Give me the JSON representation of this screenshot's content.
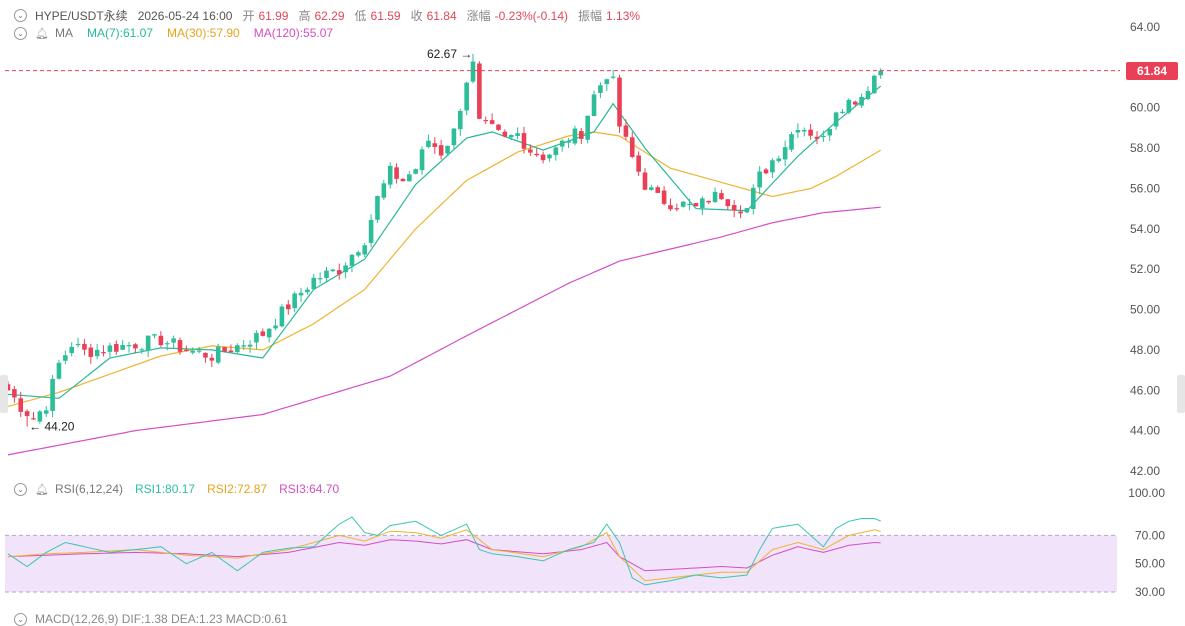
{
  "header": {
    "symbol": "HYPE/USDT永续",
    "datetime": "2026-05-24 16:00",
    "open_label": "开",
    "open": "61.99",
    "high_label": "高",
    "high": "62.29",
    "low_label": "低",
    "low": "61.59",
    "close_label": "收",
    "close": "61.84",
    "change_label": "涨幅",
    "change": "-0.23%(-0.14)",
    "amplitude_label": "振幅",
    "amplitude": "1.13%"
  },
  "ma_legend": {
    "name": "MA",
    "ma7": "MA(7):61.07",
    "ma30": "MA(30):57.90",
    "ma120": "MA(120):55.07"
  },
  "rsi_legend": {
    "name": "RSI(6,12,24)",
    "rsi1": "RSI1:80.17",
    "rsi2": "RSI2:72.87",
    "rsi3": "RSI3:64.70"
  },
  "macd_legend": {
    "text": "MACD(12,26,9)  DIF:1.38  DEA:1.23  MACD:0.61"
  },
  "current_price": "61.84",
  "colors": {
    "up": "#2ebd99",
    "down": "#e94057",
    "ma7": "#26b99a",
    "ma30": "#f0b330",
    "ma120": "#d34fc5",
    "rsi1": "#3cc5b0",
    "rsi2": "#f0b330",
    "rsi3": "#d34fc5",
    "rsi_band": "#f1e3fa"
  },
  "chart_data": {
    "type": "candlestick",
    "ylim": [
      42,
      64
    ],
    "y_ticks": [
      "64.00",
      "62.00",
      "60.00",
      "58.00",
      "56.00",
      "54.00",
      "52.00",
      "50.00",
      "48.00",
      "46.00",
      "44.00",
      "42.00"
    ],
    "y_tick_values": [
      64,
      62,
      60,
      58,
      56,
      54,
      52,
      50,
      48,
      46,
      44,
      42
    ],
    "annotations": {
      "max": "62.67",
      "max_arrow": "→",
      "min": "44.20",
      "min_arrow": "←"
    },
    "anchors": [
      [
        0,
        46.0
      ],
      [
        2,
        45.2
      ],
      [
        4,
        44.6
      ],
      [
        6,
        45.3
      ],
      [
        8,
        47.3
      ],
      [
        10,
        48.3
      ],
      [
        12,
        47.9
      ],
      [
        16,
        48.1
      ],
      [
        20,
        48.3
      ],
      [
        24,
        48.5
      ],
      [
        28,
        48.0
      ],
      [
        32,
        47.7
      ],
      [
        36,
        48.2
      ],
      [
        40,
        48.8
      ],
      [
        44,
        50.2
      ],
      [
        48,
        51.5
      ],
      [
        52,
        52.0
      ],
      [
        56,
        53.5
      ],
      [
        58,
        55.5
      ],
      [
        60,
        56.8
      ],
      [
        62,
        56.4
      ],
      [
        64,
        57.0
      ],
      [
        66,
        58.4
      ],
      [
        68,
        57.8
      ],
      [
        70,
        58.8
      ],
      [
        72,
        61.4
      ],
      [
        73,
        62.1
      ],
      [
        74,
        59.2
      ],
      [
        76,
        58.9
      ],
      [
        78,
        58.4
      ],
      [
        80,
        58.7
      ],
      [
        82,
        57.9
      ],
      [
        84,
        57.6
      ],
      [
        86,
        57.9
      ],
      [
        88,
        58.5
      ],
      [
        90,
        58.8
      ],
      [
        92,
        60.6
      ],
      [
        94,
        61.7
      ],
      [
        95,
        61.2
      ],
      [
        96,
        59.1
      ],
      [
        98,
        57.5
      ],
      [
        100,
        56.2
      ],
      [
        102,
        55.5
      ],
      [
        104,
        55.3
      ],
      [
        106,
        55.2
      ],
      [
        108,
        55.0
      ],
      [
        110,
        55.5
      ],
      [
        112,
        55.7
      ],
      [
        114,
        55.2
      ],
      [
        116,
        55.0
      ],
      [
        118,
        56.6
      ],
      [
        120,
        57.4
      ],
      [
        122,
        58.2
      ],
      [
        124,
        59.2
      ],
      [
        126,
        58.8
      ],
      [
        128,
        58.4
      ],
      [
        130,
        60.0
      ],
      [
        132,
        60.3
      ],
      [
        134,
        60.6
      ],
      [
        136,
        61.6
      ],
      [
        137,
        61.84
      ]
    ],
    "ma_series": {
      "ma7": {
        "x": [
          0,
          8,
          16,
          24,
          32,
          40,
          48,
          56,
          64,
          72,
          76,
          84,
          92,
          95,
          100,
          108,
          116,
          124,
          130,
          137
        ],
        "y": [
          45.8,
          45.6,
          47.6,
          48.1,
          48.0,
          47.6,
          51.0,
          52.5,
          56.2,
          58.5,
          58.8,
          57.9,
          58.8,
          60.2,
          58.0,
          55.0,
          54.9,
          57.6,
          59.3,
          61.07
        ]
      },
      "ma30": {
        "x": [
          0,
          8,
          16,
          24,
          32,
          40,
          48,
          56,
          64,
          72,
          80,
          88,
          92,
          96,
          104,
          112,
          120,
          126,
          130,
          137
        ],
        "y": [
          45.2,
          45.9,
          46.8,
          47.7,
          48.2,
          48.0,
          49.3,
          51.0,
          54.0,
          56.4,
          57.8,
          58.6,
          58.8,
          58.6,
          57.0,
          56.3,
          55.6,
          56.0,
          56.6,
          57.9
        ]
      },
      "ma120": {
        "x": [
          0,
          20,
          40,
          60,
          72,
          80,
          88,
          96,
          104,
          112,
          120,
          128,
          137
        ],
        "y": [
          42.8,
          44.0,
          44.8,
          46.7,
          48.7,
          50.0,
          51.3,
          52.4,
          53.0,
          53.6,
          54.3,
          54.8,
          55.07
        ]
      }
    },
    "rsi": {
      "ylim": [
        25,
        105
      ],
      "y_ticks": [
        "100.00",
        "70.00",
        "50.00",
        "30.00"
      ],
      "y_tick_values": [
        100,
        70,
        50,
        30
      ],
      "band": [
        30,
        70
      ],
      "rsi1": {
        "x": [
          0,
          3,
          6,
          9,
          12,
          16,
          20,
          24,
          28,
          32,
          36,
          40,
          44,
          48,
          52,
          54,
          56,
          58,
          60,
          64,
          68,
          72,
          74,
          76,
          80,
          84,
          88,
          92,
          94,
          96,
          98,
          100,
          104,
          108,
          112,
          116,
          118,
          120,
          124,
          128,
          130,
          132,
          134,
          136,
          137
        ],
        "y": [
          57,
          48,
          58,
          65,
          62,
          58,
          60,
          62,
          50,
          58,
          45,
          58,
          61,
          62,
          78,
          83,
          72,
          70,
          77,
          80,
          70,
          78,
          60,
          57,
          55,
          52,
          60,
          65,
          78,
          65,
          40,
          35,
          38,
          42,
          40,
          42,
          60,
          75,
          78,
          62,
          75,
          80,
          82,
          82,
          80.17
        ]
      },
      "rsi2": {
        "x": [
          0,
          6,
          12,
          20,
          28,
          36,
          44,
          52,
          56,
          60,
          64,
          68,
          72,
          76,
          84,
          90,
          94,
          96,
          100,
          104,
          108,
          112,
          116,
          120,
          124,
          128,
          132,
          136,
          137
        ],
        "y": [
          55,
          57,
          58,
          60,
          56,
          54,
          60,
          70,
          66,
          73,
          72,
          68,
          74,
          60,
          55,
          62,
          72,
          55,
          38,
          40,
          42,
          44,
          44,
          60,
          65,
          60,
          70,
          74,
          72.87
        ]
      },
      "rsi3": {
        "x": [
          0,
          6,
          12,
          20,
          28,
          36,
          44,
          52,
          56,
          60,
          64,
          68,
          72,
          76,
          84,
          90,
          94,
          96,
          100,
          104,
          108,
          112,
          116,
          120,
          124,
          128,
          132,
          136,
          137
        ],
        "y": [
          55,
          56,
          57,
          58,
          57,
          55,
          58,
          65,
          63,
          67,
          66,
          64,
          67,
          60,
          57,
          60,
          65,
          55,
          45,
          46,
          47,
          48,
          47,
          56,
          62,
          58,
          63,
          65,
          64.7
        ]
      }
    }
  }
}
